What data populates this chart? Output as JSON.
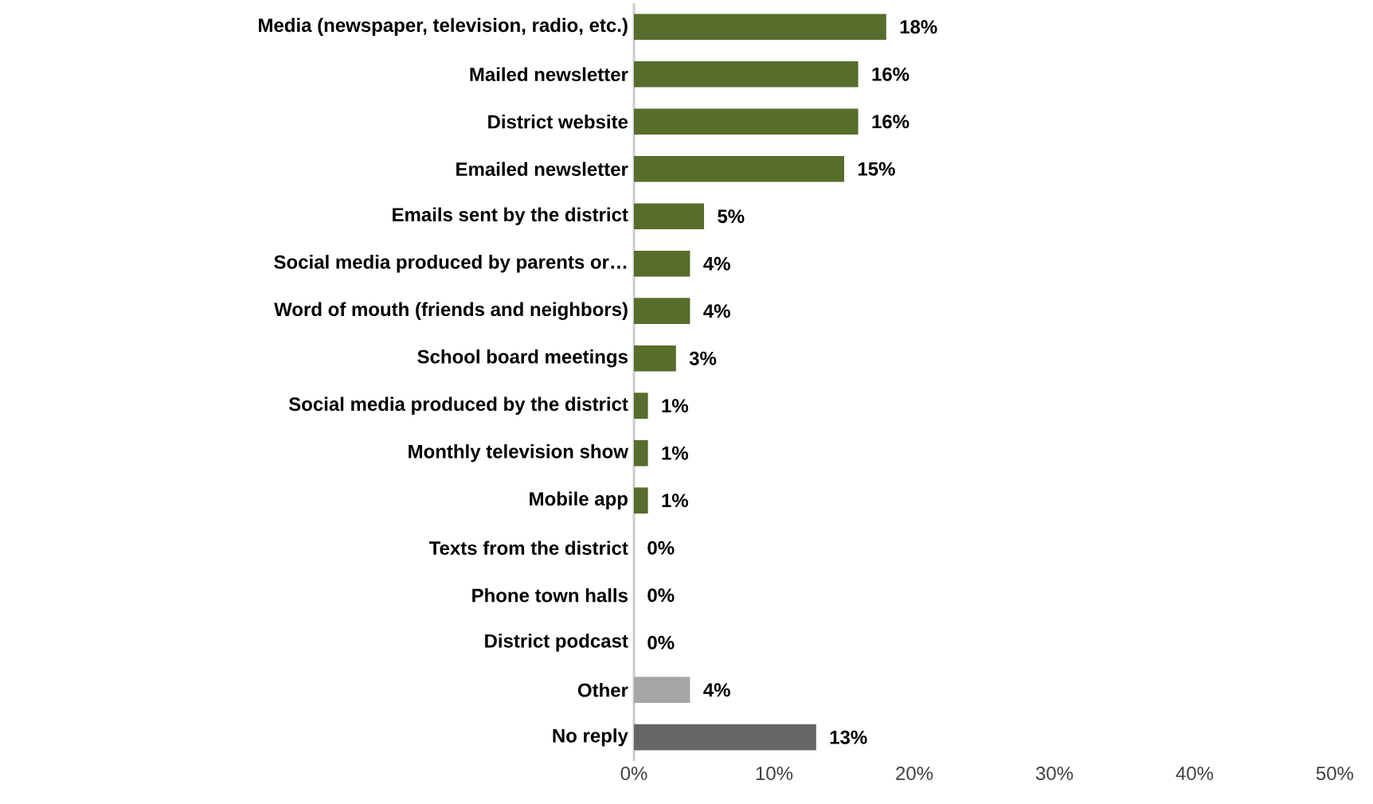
{
  "chart_data": {
    "type": "bar",
    "orientation": "horizontal",
    "categories": [
      "Media (newspaper, television, radio, etc.)",
      "Mailed newsletter",
      "District website",
      "Emailed newsletter",
      "Emails sent by the district",
      "Social media produced by parents or…",
      "Word of mouth (friends and neighbors)",
      "School board meetings",
      "Social media produced by the district",
      "Monthly television show",
      "Mobile app",
      "Texts from the district",
      "Phone town halls",
      "District podcast",
      "Other",
      "No reply"
    ],
    "values": [
      18,
      16,
      16,
      15,
      5,
      4,
      4,
      3,
      1,
      1,
      1,
      0,
      0,
      0,
      4,
      13
    ],
    "value_labels": [
      "18%",
      "16%",
      "16%",
      "15%",
      "5%",
      "4%",
      "4%",
      "3%",
      "1%",
      "1%",
      "1%",
      "0%",
      "0%",
      "0%",
      "4%",
      "13%"
    ],
    "colors": [
      "#586c2c",
      "#586c2c",
      "#586c2c",
      "#586c2c",
      "#586c2c",
      "#586c2c",
      "#586c2c",
      "#586c2c",
      "#586c2c",
      "#586c2c",
      "#586c2c",
      "#586c2c",
      "#586c2c",
      "#586c2c",
      "#a6a6a6",
      "#666666"
    ],
    "xlim": [
      0,
      50
    ],
    "xticks": [
      {
        "value": 0,
        "label": "0%"
      },
      {
        "value": 10,
        "label": "10%"
      },
      {
        "value": 20,
        "label": "20%"
      },
      {
        "value": 30,
        "label": "30%"
      },
      {
        "value": 40,
        "label": "40%"
      },
      {
        "value": 50,
        "label": "50%"
      }
    ]
  }
}
